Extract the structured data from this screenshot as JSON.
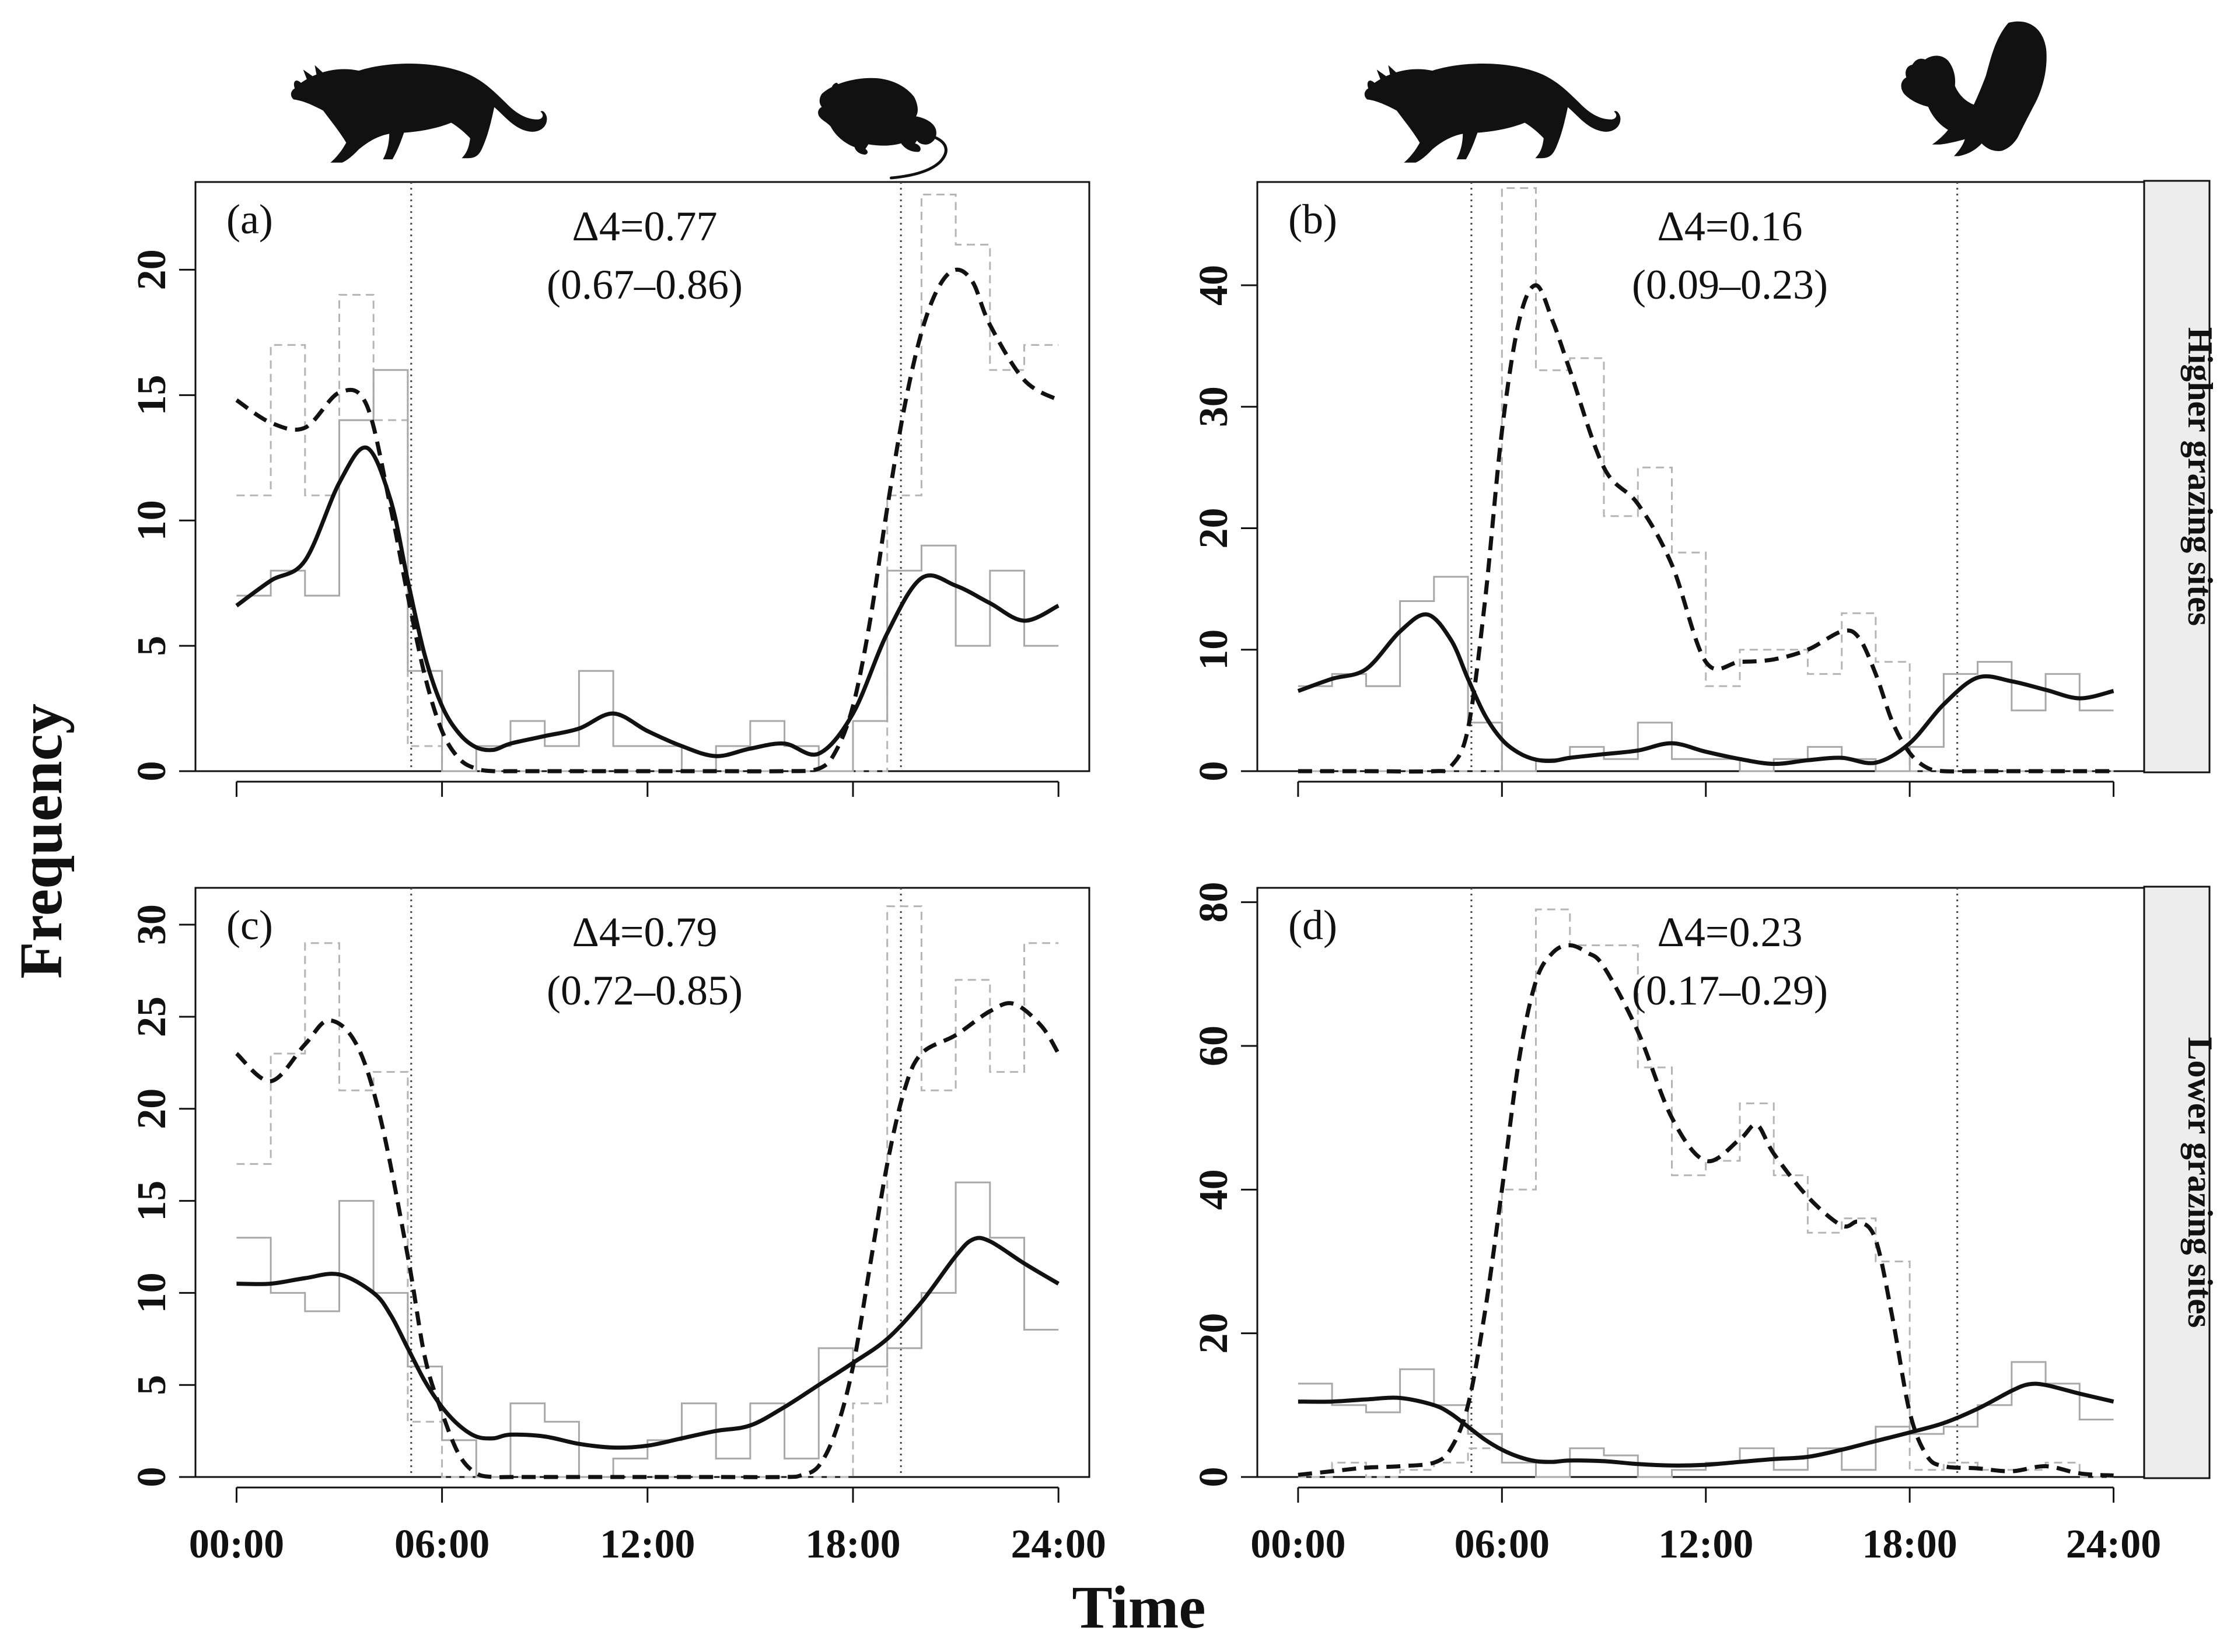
{
  "figure": {
    "x_axis_title": "Time",
    "y_axis_title": "Frequency",
    "x_tick_labels": [
      "00:00",
      "06:00",
      "12:00",
      "18:00",
      "24:00"
    ],
    "silhouettes": [
      "cat-silhouette-icon",
      "rat-silhouette-icon",
      "cat-silhouette-icon",
      "squirrel-silhouette-icon"
    ]
  },
  "chart_data": [
    {
      "type": "line",
      "panel": "(a)",
      "row_strip": "",
      "overlap_label": "Δ4=0.77",
      "overlap_ci": "(0.67–0.86)",
      "ylim": [
        0,
        23.5
      ],
      "yticks": [
        0,
        5,
        10,
        15,
        20
      ],
      "xlim": [
        -1.2,
        24.9
      ],
      "xticks": [
        0,
        6,
        12,
        18,
        24
      ],
      "xlabel": "Time",
      "ylabel": "Frequency",
      "dawn_dusk_lines": [
        5.1,
        19.4
      ],
      "histogram_solid": [
        7,
        8,
        7,
        14,
        16,
        4,
        0,
        1,
        2,
        1,
        4,
        1,
        1,
        0,
        1,
        2,
        1,
        0,
        2,
        8,
        9,
        5,
        8,
        5
      ],
      "histogram_dashed": [
        11,
        17,
        11,
        19,
        14,
        1,
        0,
        0,
        0,
        0,
        0,
        0,
        0,
        0,
        0,
        0,
        0,
        0,
        0,
        11,
        23,
        21,
        16,
        17
      ],
      "series": [
        {
          "name": "cat",
          "style": "solid",
          "x": [
            0,
            1,
            2,
            3,
            3.8,
            4.5,
            5,
            5.5,
            6,
            6.5,
            7,
            7.5,
            8,
            9,
            10,
            11,
            12,
            13,
            14,
            15,
            16,
            17,
            18,
            19,
            20,
            21,
            22,
            23,
            24
          ],
          "y": [
            6.6,
            7.6,
            8.4,
            11.5,
            12.9,
            10.8,
            7.6,
            4.6,
            2.6,
            1.5,
            0.95,
            0.85,
            1.1,
            1.4,
            1.7,
            2.3,
            1.6,
            1.0,
            0.6,
            0.9,
            1.1,
            0.7,
            2.3,
            5.5,
            7.7,
            7.4,
            6.7,
            6.0,
            6.6
          ]
        },
        {
          "name": "rat",
          "style": "dashed",
          "x": [
            0,
            1,
            2,
            3,
            3.8,
            4.5,
            5,
            5.5,
            6,
            6.5,
            7,
            7.5,
            8,
            10,
            12,
            14,
            16,
            17,
            17.5,
            18,
            18.5,
            19,
            19.5,
            20,
            20.5,
            21,
            21.5,
            22,
            23,
            24
          ],
          "y": [
            14.8,
            13.9,
            13.7,
            15.1,
            14.6,
            10.5,
            7.0,
            3.8,
            1.6,
            0.5,
            0.1,
            0,
            0,
            0,
            0,
            0,
            0,
            0.1,
            0.8,
            2.6,
            6.0,
            10.5,
            14.5,
            17.5,
            19.3,
            20.0,
            19.5,
            17.8,
            15.6,
            14.8
          ]
        }
      ]
    },
    {
      "type": "line",
      "panel": "(b)",
      "row_strip": "Higher grazing sites",
      "overlap_label": "Δ4=0.16",
      "overlap_ci": "(0.09–0.23)",
      "ylim": [
        0,
        48.5
      ],
      "yticks": [
        0,
        10,
        20,
        30,
        40
      ],
      "xlim": [
        -1.2,
        24.9
      ],
      "xticks": [
        0,
        6,
        12,
        18,
        24
      ],
      "xlabel": "Time",
      "ylabel": "Frequency",
      "dawn_dusk_lines": [
        5.1,
        19.4
      ],
      "histogram_solid": [
        7,
        8,
        7,
        14,
        16,
        4,
        0,
        1,
        2,
        1,
        4,
        1,
        1,
        0,
        1,
        2,
        1,
        0,
        2,
        8,
        9,
        5,
        8,
        5
      ],
      "histogram_dashed": [
        0,
        0,
        0,
        0,
        0,
        0,
        48,
        33,
        34,
        21,
        25,
        18,
        7,
        10,
        10,
        8,
        13,
        9,
        0,
        0,
        0,
        0,
        0,
        0
      ],
      "series": [
        {
          "name": "cat",
          "style": "solid",
          "x": [
            0,
            1,
            2,
            3,
            3.8,
            4.5,
            5,
            5.5,
            6,
            6.5,
            7,
            7.5,
            8,
            9,
            10,
            11,
            12,
            13,
            14,
            15,
            16,
            17,
            18,
            19,
            20,
            21,
            22,
            23,
            24
          ],
          "y": [
            6.6,
            7.6,
            8.4,
            11.5,
            12.9,
            10.8,
            7.6,
            4.6,
            2.6,
            1.5,
            0.95,
            0.85,
            1.1,
            1.4,
            1.7,
            2.3,
            1.6,
            1.0,
            0.6,
            0.9,
            1.1,
            0.7,
            2.3,
            5.5,
            7.7,
            7.4,
            6.7,
            6.0,
            6.6
          ]
        },
        {
          "name": "squirrel",
          "style": "dashed",
          "x": [
            0,
            2,
            4,
            4.5,
            5,
            5.5,
            6,
            6.5,
            7,
            7.5,
            8,
            9,
            10,
            11,
            12,
            13,
            14,
            15,
            16,
            16.5,
            17,
            17.5,
            18,
            18.5,
            19,
            20,
            24
          ],
          "y": [
            0,
            0,
            0,
            0.4,
            3.5,
            14,
            28,
            37,
            40,
            37,
            33,
            25,
            22,
            17,
            9,
            9,
            9.2,
            10,
            11.5,
            11,
            8,
            4,
            1.5,
            0.3,
            0,
            0,
            0
          ]
        }
      ]
    },
    {
      "type": "line",
      "panel": "(c)",
      "row_strip": "",
      "overlap_label": "Δ4=0.79",
      "overlap_ci": "(0.72–0.85)",
      "ylim": [
        0,
        32
      ],
      "yticks": [
        0,
        5,
        10,
        15,
        20,
        25,
        30
      ],
      "xlim": [
        -1.2,
        24.9
      ],
      "xticks": [
        0,
        6,
        12,
        18,
        24
      ],
      "xlabel": "Time",
      "ylabel": "Frequency",
      "dawn_dusk_lines": [
        5.1,
        19.4
      ],
      "histogram_solid": [
        13,
        10,
        9,
        15,
        10,
        6,
        2,
        0,
        4,
        3,
        0,
        1,
        2,
        4,
        1,
        4,
        1,
        7,
        6,
        7,
        10,
        16,
        13,
        8
      ],
      "histogram_dashed": [
        17,
        23,
        29,
        21,
        22,
        3,
        0,
        0,
        0,
        0,
        0,
        0,
        0,
        0,
        0,
        0,
        0,
        0,
        4,
        31,
        21,
        27,
        22,
        29
      ],
      "series": [
        {
          "name": "cat",
          "style": "solid",
          "x": [
            0,
            1,
            2,
            3,
            4,
            4.5,
            5,
            5.5,
            6,
            6.5,
            7,
            7.5,
            8,
            9,
            10,
            11,
            12,
            13,
            14,
            15,
            16,
            17,
            18,
            19,
            20,
            21,
            21.5,
            22,
            23,
            24
          ],
          "y": [
            10.5,
            10.5,
            10.8,
            11.0,
            10.0,
            8.8,
            7.0,
            5.2,
            3.8,
            2.8,
            2.2,
            2.1,
            2.3,
            2.2,
            1.8,
            1.6,
            1.7,
            2.1,
            2.5,
            2.8,
            3.8,
            5.0,
            6.2,
            7.5,
            9.5,
            12.0,
            12.9,
            12.8,
            11.6,
            10.5
          ]
        },
        {
          "name": "rat",
          "style": "dashed",
          "x": [
            0,
            1,
            2,
            2.7,
            3.5,
            4.2,
            5,
            5.5,
            6,
            6.5,
            7,
            7.5,
            8,
            10,
            12,
            14,
            16,
            16.5,
            17,
            17.5,
            18,
            18.5,
            19,
            19.5,
            20,
            21,
            22,
            22.7,
            23.5,
            24
          ],
          "y": [
            23,
            21.5,
            23.5,
            24.8,
            23.5,
            19.5,
            12,
            6.5,
            3.5,
            1.2,
            0.2,
            0,
            0,
            0,
            0,
            0,
            0,
            0.1,
            0.6,
            2.5,
            6.0,
            11.5,
            17.0,
            21.0,
            23.0,
            24.0,
            25.3,
            25.7,
            24.5,
            23
          ]
        }
      ]
    },
    {
      "type": "line",
      "panel": "(d)",
      "row_strip": "Lower grazing sites",
      "overlap_label": "Δ4=0.23",
      "overlap_ci": "(0.17–0.29)",
      "ylim": [
        0,
        82
      ],
      "yticks": [
        0,
        20,
        40,
        60,
        80
      ],
      "xlim": [
        -1.2,
        24.9
      ],
      "xticks": [
        0,
        6,
        12,
        18,
        24
      ],
      "xlabel": "Time",
      "ylabel": "Frequency",
      "dawn_dusk_lines": [
        5.1,
        19.4
      ],
      "histogram_solid": [
        13,
        10,
        9,
        15,
        10,
        6,
        2,
        0,
        4,
        3,
        0,
        1,
        2,
        4,
        1,
        4,
        1,
        7,
        6,
        7,
        10,
        16,
        13,
        8
      ],
      "histogram_dashed": [
        0,
        2,
        0,
        1,
        2,
        4,
        40,
        79,
        74,
        74,
        57,
        42,
        44,
        52,
        42,
        34,
        36,
        30,
        1,
        2,
        1,
        1,
        2,
        0
      ],
      "series": [
        {
          "name": "cat",
          "style": "solid",
          "x": [
            0,
            1,
            2,
            3,
            4,
            4.5,
            5,
            5.5,
            6,
            6.5,
            7,
            7.5,
            8,
            9,
            10,
            11,
            12,
            13,
            14,
            15,
            16,
            17,
            18,
            19,
            20,
            21,
            21.5,
            22,
            23,
            24
          ],
          "y": [
            10.5,
            10.5,
            10.8,
            11.0,
            10.0,
            8.8,
            7.0,
            5.2,
            3.8,
            2.8,
            2.2,
            2.1,
            2.3,
            2.2,
            1.8,
            1.6,
            1.7,
            2.1,
            2.5,
            2.8,
            3.8,
            5.0,
            6.2,
            7.5,
            9.5,
            12.0,
            12.9,
            12.8,
            11.6,
            10.5
          ]
        },
        {
          "name": "squirrel",
          "style": "dashed",
          "x": [
            0,
            1,
            2,
            3,
            4,
            4.5,
            5,
            5.5,
            6,
            6.5,
            7,
            7.5,
            8,
            8.5,
            9,
            10,
            11,
            12,
            13,
            13.5,
            14,
            15,
            16,
            16.5,
            17,
            17.5,
            18,
            18.5,
            19,
            20,
            21,
            22,
            23,
            24
          ],
          "y": [
            0.3,
            0.8,
            1.3,
            1.5,
            2.0,
            4.0,
            10,
            23,
            40,
            58,
            69,
            73,
            74,
            73,
            71,
            62,
            50,
            44,
            47,
            49,
            45,
            39,
            35,
            35.5,
            33,
            22,
            9,
            3,
            1.5,
            1.2,
            0.8,
            1.5,
            0.5,
            0.2
          ]
        }
      ]
    }
  ]
}
